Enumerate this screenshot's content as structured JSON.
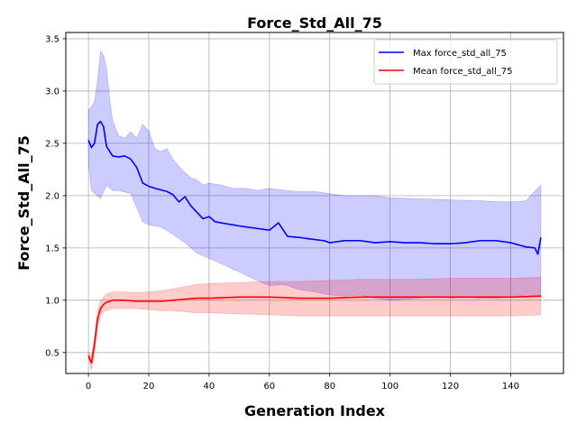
{
  "chart_data": {
    "type": "line",
    "title": "Force_Std_All_75",
    "xlabel": "Generation Index",
    "ylabel": "Force_Std_All_75",
    "xlim": [
      -7.5,
      157.5
    ],
    "ylim": [
      0.3,
      3.56
    ],
    "xticks": [
      0,
      20,
      40,
      60,
      80,
      100,
      120,
      140
    ],
    "yticks": [
      0.5,
      1.0,
      1.5,
      2.0,
      2.5,
      3.0,
      3.5
    ],
    "grid": true,
    "legend_position": "top-right",
    "x_max": 150,
    "series": [
      {
        "name": "Max force_std_all_75",
        "color": "#0000ff",
        "band_color": "#0000ff",
        "anchors": [
          [
            0,
            2.53
          ],
          [
            1,
            2.46
          ],
          [
            2,
            2.5
          ],
          [
            3,
            2.68
          ],
          [
            4,
            2.71
          ],
          [
            5,
            2.66
          ],
          [
            6,
            2.47
          ],
          [
            8,
            2.38
          ],
          [
            10,
            2.37
          ],
          [
            12,
            2.38
          ],
          [
            14,
            2.35
          ],
          [
            16,
            2.27
          ],
          [
            18,
            2.12
          ],
          [
            20,
            2.09
          ],
          [
            22,
            2.07
          ],
          [
            26,
            2.04
          ],
          [
            28,
            2.01
          ],
          [
            30,
            1.94
          ],
          [
            32,
            1.99
          ],
          [
            34,
            1.9
          ],
          [
            36,
            1.84
          ],
          [
            38,
            1.78
          ],
          [
            40,
            1.8
          ],
          [
            42,
            1.75
          ],
          [
            46,
            1.73
          ],
          [
            50,
            1.71
          ],
          [
            55,
            1.69
          ],
          [
            60,
            1.67
          ],
          [
            63,
            1.74
          ],
          [
            66,
            1.61
          ],
          [
            70,
            1.6
          ],
          [
            75,
            1.58
          ],
          [
            78,
            1.57
          ],
          [
            80,
            1.55
          ],
          [
            85,
            1.57
          ],
          [
            90,
            1.57
          ],
          [
            95,
            1.55
          ],
          [
            100,
            1.56
          ],
          [
            105,
            1.55
          ],
          [
            110,
            1.55
          ],
          [
            115,
            1.54
          ],
          [
            120,
            1.54
          ],
          [
            125,
            1.55
          ],
          [
            130,
            1.57
          ],
          [
            135,
            1.57
          ],
          [
            140,
            1.55
          ],
          [
            145,
            1.51
          ],
          [
            148,
            1.5
          ],
          [
            149,
            1.44
          ],
          [
            150,
            1.6
          ]
        ],
        "band_lower_anchors": [
          [
            0,
            2.3
          ],
          [
            1,
            2.05
          ],
          [
            2,
            2.02
          ],
          [
            4,
            1.97
          ],
          [
            6,
            2.1
          ],
          [
            8,
            2.05
          ],
          [
            10,
            2.05
          ],
          [
            14,
            2.02
          ],
          [
            18,
            1.75
          ],
          [
            20,
            1.72
          ],
          [
            24,
            1.7
          ],
          [
            28,
            1.63
          ],
          [
            32,
            1.55
          ],
          [
            36,
            1.45
          ],
          [
            40,
            1.4
          ],
          [
            44,
            1.35
          ],
          [
            50,
            1.27
          ],
          [
            55,
            1.2
          ],
          [
            60,
            1.14
          ],
          [
            65,
            1.15
          ],
          [
            70,
            1.1
          ],
          [
            75,
            1.08
          ],
          [
            80,
            1.05
          ],
          [
            85,
            1.04
          ],
          [
            90,
            1.05
          ],
          [
            95,
            1.02
          ],
          [
            100,
            1.0
          ],
          [
            105,
            1.01
          ],
          [
            110,
            1.02
          ],
          [
            115,
            1.04
          ],
          [
            120,
            1.02
          ],
          [
            125,
            1.03
          ],
          [
            130,
            1.02
          ],
          [
            135,
            1.02
          ],
          [
            140,
            1.03
          ],
          [
            145,
            1.05
          ],
          [
            150,
            1.03
          ]
        ],
        "band_upper_anchors": [
          [
            0,
            2.82
          ],
          [
            1,
            2.85
          ],
          [
            2,
            2.9
          ],
          [
            3,
            3.1
          ],
          [
            4,
            3.38
          ],
          [
            5,
            3.34
          ],
          [
            6,
            3.22
          ],
          [
            7,
            2.93
          ],
          [
            8,
            2.72
          ],
          [
            10,
            2.57
          ],
          [
            12,
            2.55
          ],
          [
            14,
            2.61
          ],
          [
            16,
            2.55
          ],
          [
            18,
            2.68
          ],
          [
            20,
            2.62
          ],
          [
            22,
            2.45
          ],
          [
            24,
            2.42
          ],
          [
            26,
            2.45
          ],
          [
            28,
            2.35
          ],
          [
            30,
            2.28
          ],
          [
            32,
            2.22
          ],
          [
            34,
            2.17
          ],
          [
            36,
            2.15
          ],
          [
            38,
            2.1
          ],
          [
            40,
            2.12
          ],
          [
            44,
            2.1
          ],
          [
            48,
            2.07
          ],
          [
            52,
            2.07
          ],
          [
            56,
            2.05
          ],
          [
            60,
            2.07
          ],
          [
            65,
            2.05
          ],
          [
            70,
            2.04
          ],
          [
            75,
            2.04
          ],
          [
            80,
            2.02
          ],
          [
            85,
            2.0
          ],
          [
            90,
            2.0
          ],
          [
            95,
            2.0
          ],
          [
            100,
            1.98
          ],
          [
            110,
            1.97
          ],
          [
            120,
            1.96
          ],
          [
            130,
            1.95
          ],
          [
            140,
            1.94
          ],
          [
            145,
            1.95
          ],
          [
            150,
            2.1
          ]
        ]
      },
      {
        "name": "Mean force_std_all_75",
        "color": "#ff0000",
        "band_color": "#ff0000",
        "anchors": [
          [
            0,
            0.47
          ],
          [
            1,
            0.4
          ],
          [
            2,
            0.58
          ],
          [
            3,
            0.82
          ],
          [
            4,
            0.92
          ],
          [
            5,
            0.96
          ],
          [
            6,
            0.98
          ],
          [
            8,
            1.0
          ],
          [
            12,
            1.0
          ],
          [
            16,
            0.99
          ],
          [
            20,
            0.99
          ],
          [
            24,
            0.99
          ],
          [
            28,
            1.0
          ],
          [
            32,
            1.01
          ],
          [
            36,
            1.02
          ],
          [
            40,
            1.02
          ],
          [
            50,
            1.03
          ],
          [
            60,
            1.03
          ],
          [
            70,
            1.02
          ],
          [
            80,
            1.02
          ],
          [
            90,
            1.03
          ],
          [
            100,
            1.03
          ],
          [
            110,
            1.03
          ],
          [
            120,
            1.03
          ],
          [
            130,
            1.03
          ],
          [
            140,
            1.03
          ],
          [
            150,
            1.04
          ]
        ],
        "band_lower_anchors": [
          [
            0,
            0.44
          ],
          [
            1,
            0.33
          ],
          [
            2,
            0.5
          ],
          [
            3,
            0.73
          ],
          [
            4,
            0.85
          ],
          [
            5,
            0.89
          ],
          [
            6,
            0.9
          ],
          [
            8,
            0.92
          ],
          [
            12,
            0.92
          ],
          [
            16,
            0.92
          ],
          [
            20,
            0.91
          ],
          [
            24,
            0.9
          ],
          [
            28,
            0.9
          ],
          [
            32,
            0.89
          ],
          [
            36,
            0.88
          ],
          [
            40,
            0.88
          ],
          [
            50,
            0.87
          ],
          [
            60,
            0.86
          ],
          [
            70,
            0.85
          ],
          [
            80,
            0.85
          ],
          [
            90,
            0.85
          ],
          [
            100,
            0.85
          ],
          [
            110,
            0.85
          ],
          [
            120,
            0.85
          ],
          [
            130,
            0.85
          ],
          [
            140,
            0.85
          ],
          [
            150,
            0.86
          ]
        ],
        "band_upper_anchors": [
          [
            0,
            0.5
          ],
          [
            1,
            0.47
          ],
          [
            2,
            0.66
          ],
          [
            3,
            0.9
          ],
          [
            4,
            0.99
          ],
          [
            5,
            1.03
          ],
          [
            6,
            1.06
          ],
          [
            8,
            1.08
          ],
          [
            12,
            1.08
          ],
          [
            16,
            1.07
          ],
          [
            20,
            1.08
          ],
          [
            24,
            1.09
          ],
          [
            28,
            1.11
          ],
          [
            32,
            1.13
          ],
          [
            36,
            1.15
          ],
          [
            40,
            1.16
          ],
          [
            50,
            1.17
          ],
          [
            60,
            1.18
          ],
          [
            70,
            1.18
          ],
          [
            80,
            1.19
          ],
          [
            90,
            1.2
          ],
          [
            100,
            1.2
          ],
          [
            110,
            1.2
          ],
          [
            120,
            1.21
          ],
          [
            130,
            1.21
          ],
          [
            140,
            1.21
          ],
          [
            150,
            1.22
          ]
        ]
      }
    ]
  }
}
